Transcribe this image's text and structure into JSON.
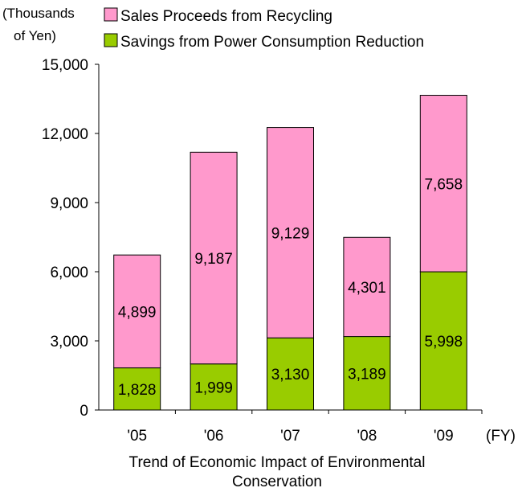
{
  "chart_data": {
    "type": "bar",
    "stacked": true,
    "unit_label_line1": "(Thousands",
    "unit_label_line2": "of Yen)",
    "x_unit_label": "(FY)",
    "categories": [
      "'05",
      "'06",
      "'07",
      "'08",
      "'09"
    ],
    "series": [
      {
        "name": "Savings from Power Consumption Reduction",
        "color": "#99cc00",
        "values": [
          1828,
          1999,
          3130,
          3189,
          5998
        ],
        "labels": [
          "1,828",
          "1,999",
          "3,130",
          "3,189",
          "5,998"
        ]
      },
      {
        "name": "Sales Proceeds from Recycling",
        "color": "#ff99cc",
        "values": [
          4899,
          9187,
          9129,
          4301,
          7658
        ],
        "labels": [
          "4,899",
          "9,187",
          "9,129",
          "4,301",
          "7,658"
        ]
      }
    ],
    "ylim": [
      0,
      15000
    ],
    "yticks": [
      0,
      3000,
      6000,
      9000,
      12000,
      15000
    ],
    "ytick_labels": [
      "0",
      "3,000",
      "6,000",
      "9,000",
      "12,000",
      "15,000"
    ],
    "legend_position": "top",
    "grid": false
  },
  "caption_line1": "Trend of Economic Impact of Environmental",
  "caption_line2": "Conservation"
}
